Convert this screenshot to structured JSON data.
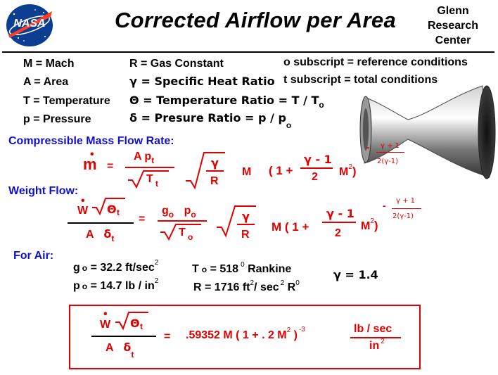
{
  "header": {
    "title": "Corrected  Airflow  per  Area",
    "org_line1": "Glenn",
    "org_line2": "Research",
    "org_line3": "Center",
    "logo_text": "NASA"
  },
  "definitions": {
    "mach": "M =  Mach",
    "area": "A = Area",
    "temp": "T = Temperature",
    "pressure": "p = Pressure",
    "gas": "R  = Gas  Constant",
    "gamma": "γ  =  Specific Heat Ratio",
    "theta": "Θ =  Temperature  Ratio  =   T / T",
    "theta_sub": "o",
    "delta": "δ  =  Presure  Ratio  =   p / p",
    "delta_sub": "o",
    "o_sub": "o subscript = reference conditions",
    "t_sub": "t  subscript = total  conditions"
  },
  "sections": {
    "mass_flow": "Compressible  Mass  Flow  Rate:",
    "weight_flow": "Weight  Flow:",
    "for_air": "For  Air:"
  },
  "eq1": {
    "m": "m",
    "equals": "=",
    "num": "A  p",
    "num_sub": "t",
    "den": "T",
    "den_sub": "t",
    "g_num": "γ",
    "g_den": "R",
    "M": "M",
    "paren_open": "( 1 +",
    "gm1": "γ - 1",
    "two": "2",
    "M2": "M",
    "sq": "2",
    "paren_close": ")",
    "exp_num": "γ + 1",
    "exp_den": "2(γ-1)",
    "minus": "-"
  },
  "eq2": {
    "W": "W",
    "theta": "Θ",
    "theta_sub": "t",
    "A": "A",
    "delta": "δ",
    "delta_sub": "t",
    "equals": "=",
    "num": "g",
    "num_sub": "o",
    "p": "p",
    "p_sub": "o",
    "den": "T",
    "den_sub": "o",
    "g_num": "γ",
    "g_den": "R",
    "Mp": "M  ( 1 +",
    "gm1": "γ - 1",
    "two": "2",
    "M2": "M",
    "sq": "2",
    "paren_close": ")",
    "exp_num": "γ + 1",
    "exp_den": "2(γ-1)",
    "minus": "-"
  },
  "air": {
    "g_label": "g",
    "g_sub": "o",
    "g_val": " = 32.2 ft/sec",
    "g_sup": "2",
    "p_label": "p",
    "p_sub": "o",
    "p_val": " = 14.7 lb / in",
    "p_sup": "2",
    "T_label": "T",
    "T_sub": "o",
    "T_val": " =  518",
    "T_sup": "0",
    "T_unit": " Rankine",
    "R_val": "R = 1716 ft",
    "R_sup1": "2",
    "R_mid": "/ sec",
    "R_sup2": "2",
    "R_end": " R",
    "R_sup3": "0",
    "gamma": "γ  =  1.4"
  },
  "result": {
    "W": "W",
    "theta": "Θ",
    "theta_sub": "t",
    "A": "A",
    "delta": "δ",
    "delta_sub": "t",
    "equals": "=",
    "expr": ".59352   M  ( 1 +  . 2  M",
    "sq": "2",
    "close": " )",
    "exp": "-3",
    "unit_num": "lb / sec",
    "unit_den": "in",
    "unit_sup": "2"
  },
  "colors": {
    "section_blue": "#1010d0",
    "box_red": "#e00000",
    "nasa_blue": "#0b3d91",
    "nasa_red": "#fc3d21"
  }
}
